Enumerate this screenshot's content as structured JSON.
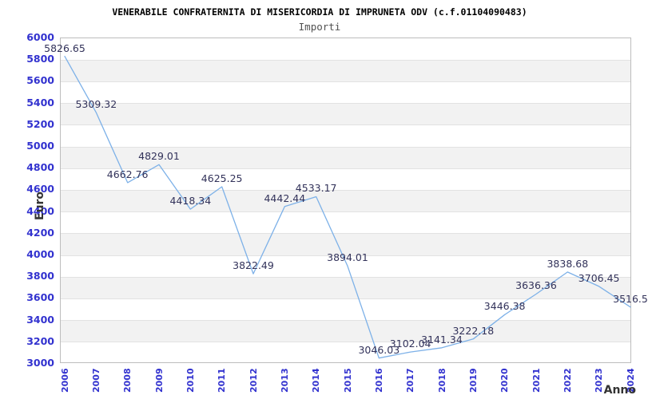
{
  "chart_data": {
    "type": "line",
    "title": "VENERABILE CONFRATERNITA DI MISERICORDIA DI IMPRUNETA ODV (c.f.01104090483)",
    "subtitle": "Importi",
    "xlabel": "Anno",
    "ylabel": "Euro",
    "categories": [
      "2006",
      "2007",
      "2008",
      "2009",
      "2010",
      "2011",
      "2012",
      "2013",
      "2014",
      "2015",
      "2016",
      "2017",
      "2018",
      "2019",
      "2020",
      "2021",
      "2022",
      "2023",
      "2024"
    ],
    "values": [
      5826.65,
      5309.32,
      4662.76,
      4829.01,
      4418.34,
      4625.25,
      3822.49,
      4442.44,
      4533.17,
      3894.01,
      3046.03,
      3102.04,
      3141.34,
      3222.18,
      3446.38,
      3636.36,
      3838.68,
      3706.45,
      3516.5
    ],
    "value_labels": [
      "5826.65",
      "5309.32",
      "4662.76",
      "4829.01",
      "4418.34",
      "4625.25",
      "3822.49",
      "4442.44",
      "4533.17",
      "3894.01",
      "3046.03",
      "3102.04",
      "3141.34",
      "3222.18",
      "3446.38",
      "3636.36",
      "3838.68",
      "3706.45",
      "3516.5"
    ],
    "ylim": [
      3000,
      6000
    ],
    "ytick_step": 200,
    "yticks": [
      "6000",
      "5800",
      "5600",
      "5400",
      "5200",
      "5000",
      "4800",
      "4600",
      "4400",
      "4200",
      "4000",
      "3800",
      "3600",
      "3400",
      "3200",
      "3000"
    ],
    "grid": true,
    "legend": "none",
    "alternating_bands": true,
    "colors": {
      "line": "#7db1e8",
      "tick_label": "#3232cf",
      "data_label": "#32325a",
      "band": "#f2f2f2",
      "grid": "#e2e2e2",
      "plot_border": "#bdbdbd",
      "title": "#000000",
      "subtitle": "#515151",
      "axis_title": "#333333"
    }
  }
}
